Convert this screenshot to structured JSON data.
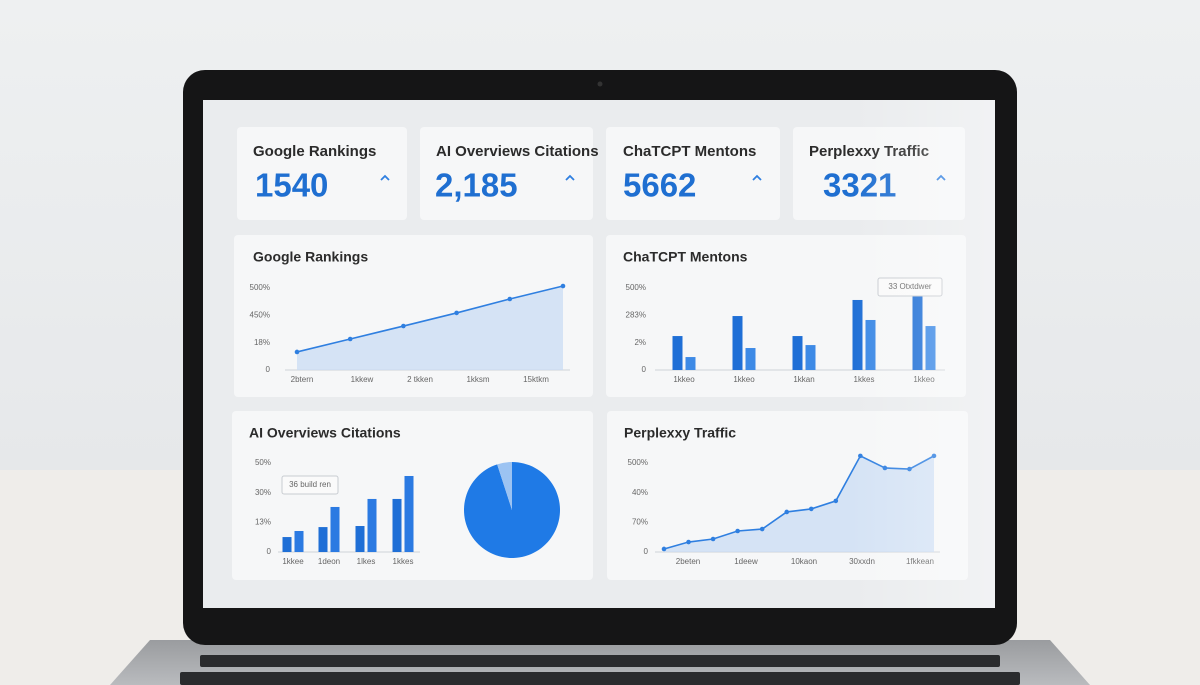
{
  "kpis": [
    {
      "title": "Google Rankings",
      "value": "1540"
    },
    {
      "title": "AI Overviews Citations",
      "value": "2,185"
    },
    {
      "title": "ChaTCPT Mentons",
      "value": "5662"
    },
    {
      "title": "Perplexxy Traffic",
      "value": "3321"
    }
  ],
  "chart_data": [
    {
      "type": "line",
      "title": "Google Rankings",
      "color": "#2f7fe0",
      "y_labels": [
        "500%",
        "450%",
        "18%",
        "0"
      ],
      "x_labels": [
        "2btern",
        "1kkew",
        "2 tkken",
        "1kksm",
        "15ktkm"
      ],
      "values": [
        110,
        189,
        268,
        348,
        433,
        512
      ],
      "ylim": [
        0,
        500
      ]
    },
    {
      "type": "bar",
      "title": "ChaTCPT Mentons",
      "annotation": "33 Otxtdwer",
      "y_labels": [
        "500%",
        "283%",
        "2%",
        "0"
      ],
      "categories": [
        "1kkeo",
        "1kkeo",
        "1kkan",
        "1kkes",
        "1kkeo"
      ],
      "series": [
        {
          "color": "#1f6fd6",
          "values": [
            207,
            329,
            207,
            427,
            451
          ]
        },
        {
          "color": "#3d8ae6",
          "values": [
            79,
            134,
            152,
            305,
            268
          ]
        }
      ],
      "ylim": [
        0,
        500
      ]
    },
    {
      "type": "bar",
      "title": "AI Overviews Citations",
      "annotation": "36 build ren",
      "y_labels": [
        "50%",
        "30%",
        "13%",
        "0"
      ],
      "categories": [
        "1kkee",
        "1deon",
        "1lkes",
        "1kkes"
      ],
      "series": [
        {
          "color": "#1f6fd6",
          "values": [
            8.4,
            14,
            14.6,
            29.8
          ]
        },
        {
          "color": "#2b7ae2",
          "values": [
            11.8,
            25.3,
            29.8,
            42.7
          ]
        }
      ],
      "ylim": [
        0,
        50
      ]
    },
    {
      "type": "line",
      "title": "Perplexxy Traffic",
      "color": "#2f7fe0",
      "y_labels": [
        "500%",
        "40%",
        "70%",
        "0"
      ],
      "x_labels": [
        "2beten",
        "1deew",
        "10kaon",
        "30xxdn",
        "1fkkean"
      ],
      "values": [
        17,
        56,
        73,
        118,
        129,
        225,
        242,
        287,
        540,
        472,
        466,
        540
      ],
      "ylim": [
        0,
        500
      ]
    },
    {
      "type": "pie",
      "values": [
        95,
        5
      ],
      "colors": [
        "#1f7ae6",
        "#9cc3f2"
      ]
    }
  ]
}
